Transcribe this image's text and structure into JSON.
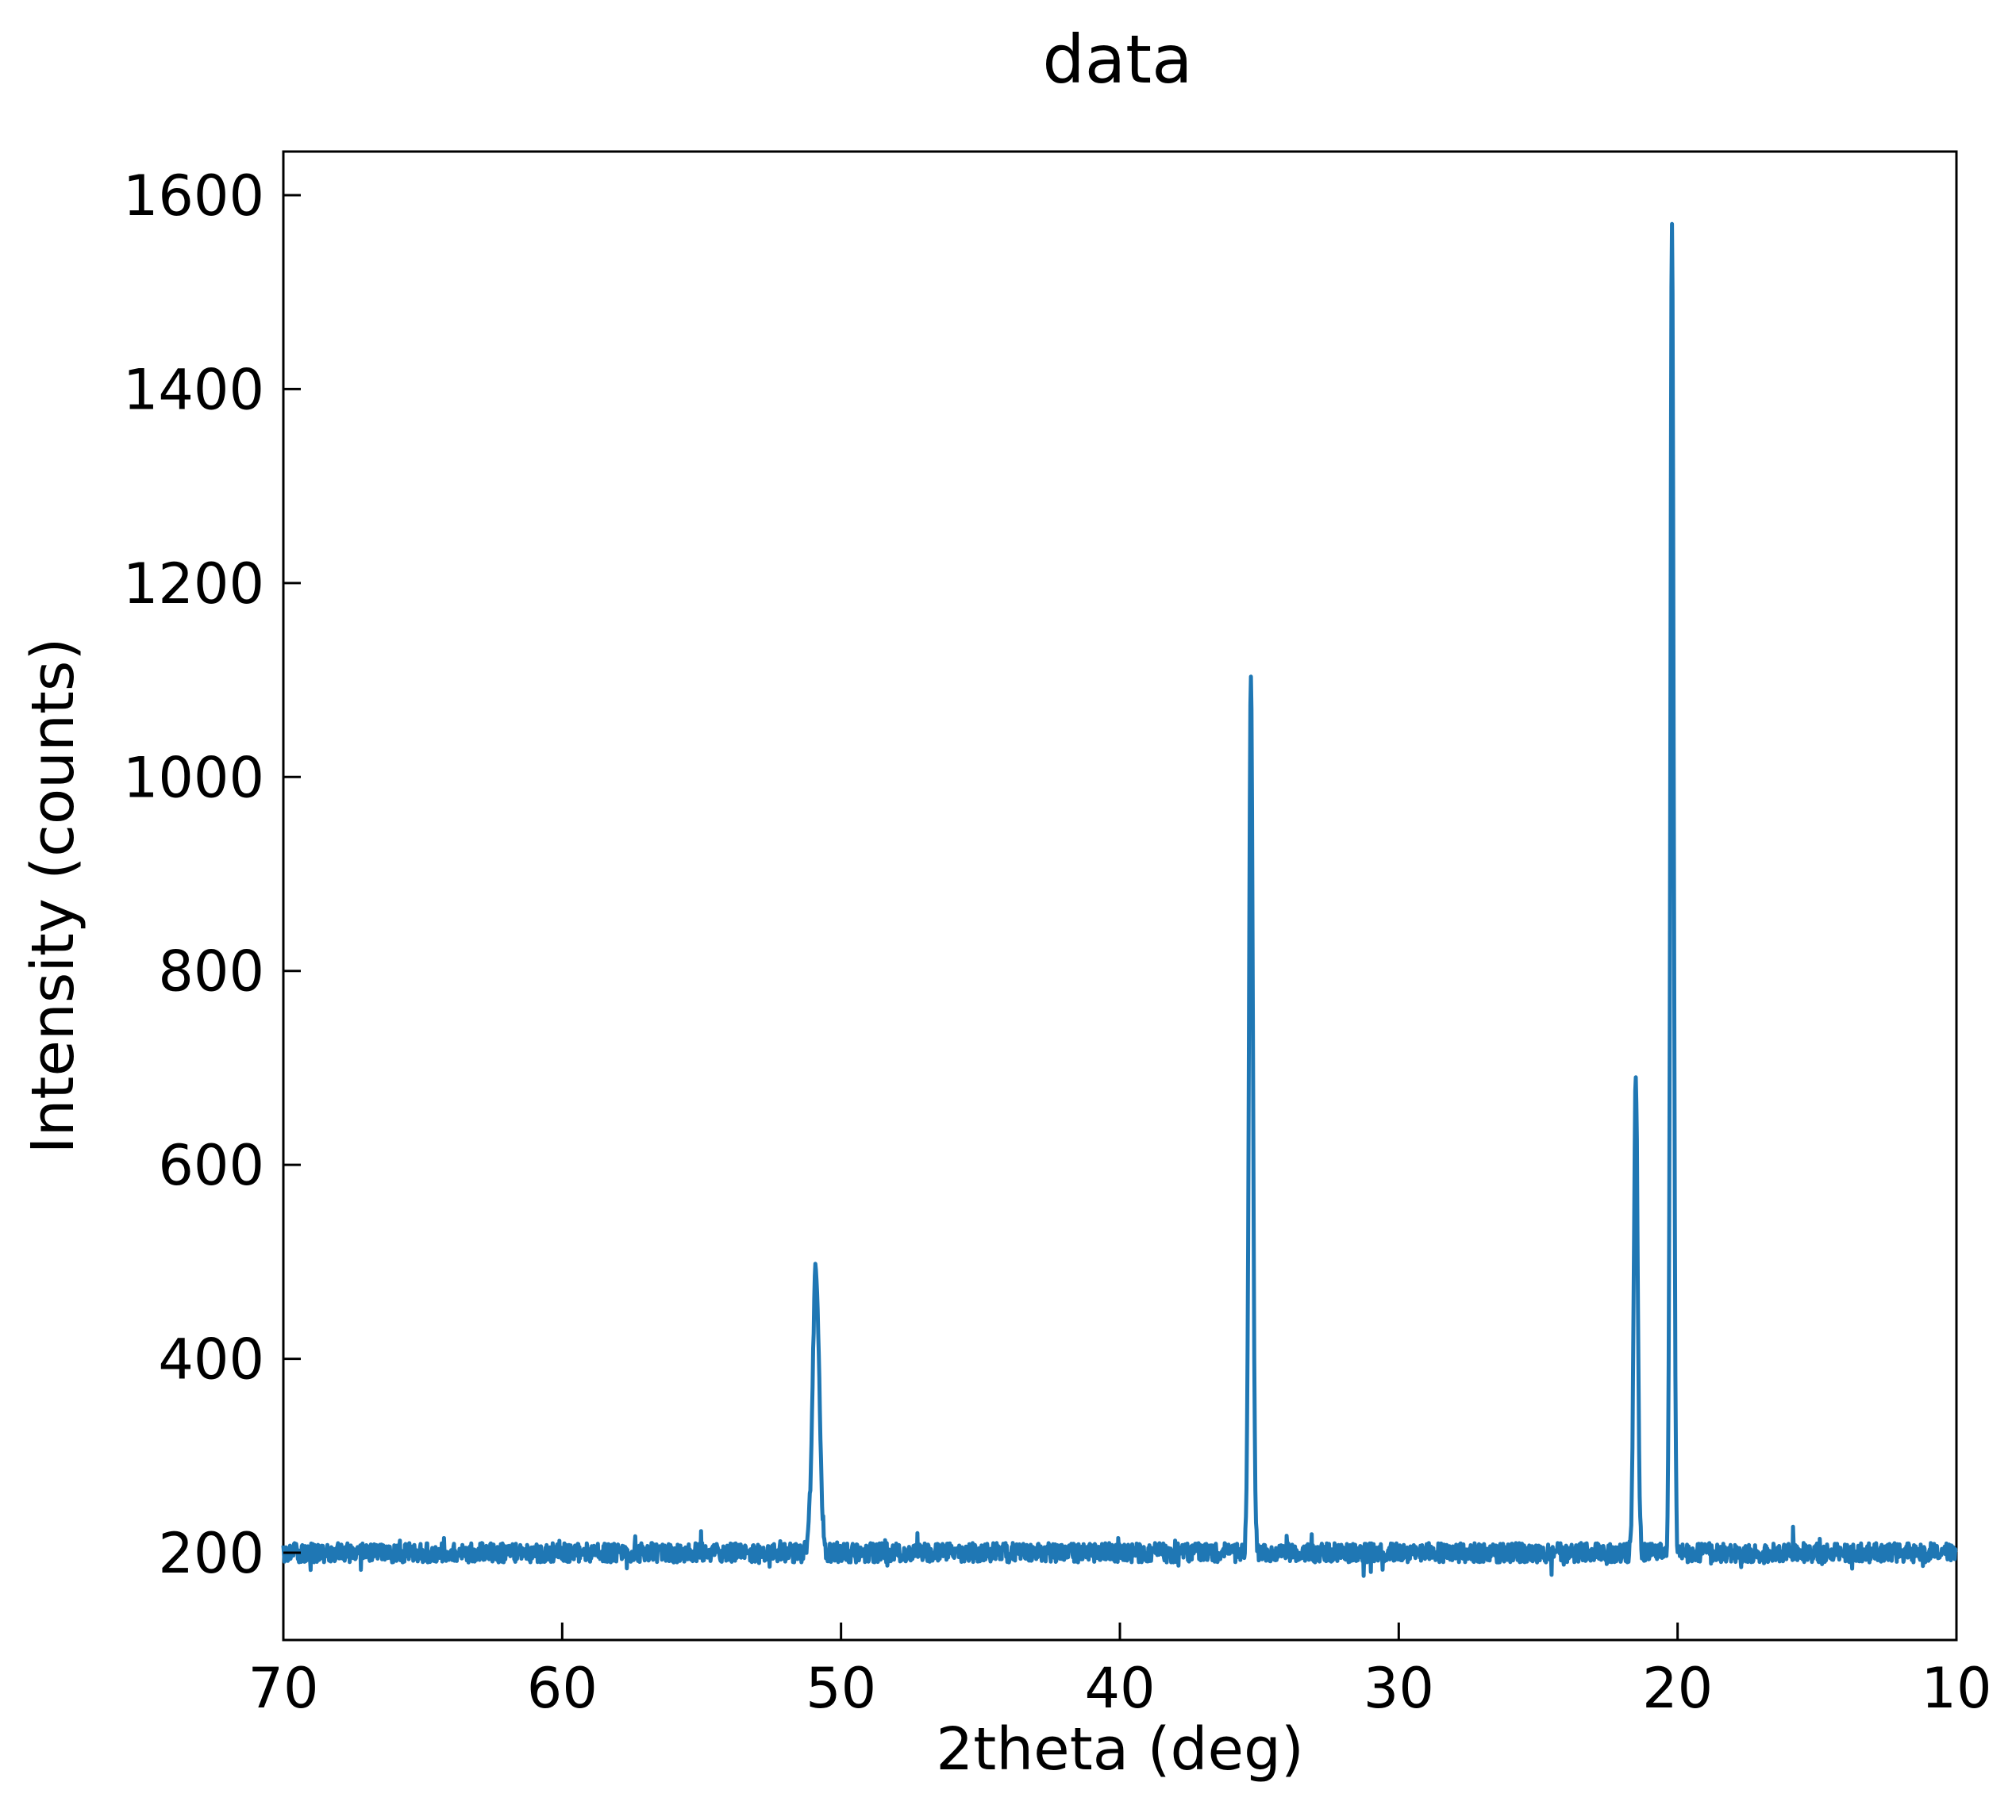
{
  "chart_data": {
    "type": "line",
    "title": "data",
    "xlabel": "2theta (deg)",
    "ylabel": "Intensity (counts)",
    "xlim": [
      70,
      10
    ],
    "ylim": [
      110,
      1645
    ],
    "x_reversed": true,
    "grid": false,
    "legend": "none",
    "xticks": [
      70,
      60,
      50,
      40,
      30,
      20,
      10
    ],
    "yticks": [
      200,
      400,
      600,
      800,
      1000,
      1200,
      1400,
      1600
    ],
    "line_color": "#1f77b4",
    "baseline": 200,
    "noise_amplitude": 10,
    "peaks": [
      {
        "x": 50.9,
        "y": 492,
        "width": 0.12
      },
      {
        "x": 35.3,
        "y": 1105,
        "width": 0.07
      },
      {
        "x": 21.5,
        "y": 692,
        "width": 0.07
      },
      {
        "x": 20.2,
        "y": 1572,
        "width": 0.06
      }
    ]
  }
}
